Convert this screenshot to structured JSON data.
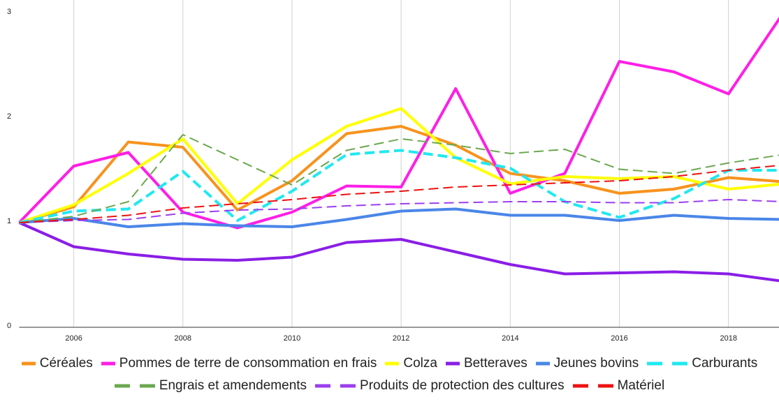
{
  "chart_data": {
    "type": "line",
    "x": [
      2005,
      2006,
      2007,
      2008,
      2009,
      2010,
      2011,
      2012,
      2013,
      2014,
      2015,
      2016,
      2017,
      2018,
      2019
    ],
    "xlim": [
      2005,
      2018.9
    ],
    "xticks": [
      2006,
      2008,
      2010,
      2012,
      2014,
      2016,
      2018
    ],
    "ylim": [
      0,
      3
    ],
    "yticks": [
      0,
      1,
      2,
      3
    ],
    "grid": true,
    "legend": "bottom",
    "series": [
      {
        "name": "Céréales",
        "color": "#f7931e",
        "dash": false,
        "values": [
          1.0,
          1.15,
          1.77,
          1.72,
          1.12,
          1.4,
          1.85,
          1.92,
          1.74,
          1.47,
          1.4,
          1.28,
          1.32,
          1.43,
          1.39
        ]
      },
      {
        "name": "Pommes de terre de consommation en frais",
        "color": "#ff1ee6",
        "dash": false,
        "values": [
          1.0,
          1.54,
          1.67,
          1.1,
          0.95,
          1.1,
          1.35,
          1.34,
          2.28,
          1.28,
          1.47,
          2.54,
          2.44,
          2.23,
          3.0
        ]
      },
      {
        "name": "Colza",
        "color": "#ffff00",
        "dash": false,
        "values": [
          1.0,
          1.17,
          1.47,
          1.8,
          1.18,
          1.6,
          1.92,
          2.09,
          1.62,
          1.37,
          1.44,
          1.42,
          1.44,
          1.32,
          1.37
        ]
      },
      {
        "name": "Betteraves",
        "color": "#8a1ee6",
        "dash": false,
        "values": [
          1.0,
          0.77,
          0.7,
          0.65,
          0.64,
          0.67,
          0.81,
          0.84,
          0.72,
          0.6,
          0.51,
          0.52,
          0.53,
          0.51,
          0.44
        ]
      },
      {
        "name": "Jeunes bovins",
        "color": "#4a86e8",
        "dash": false,
        "values": [
          1.0,
          1.04,
          0.96,
          0.99,
          0.97,
          0.96,
          1.03,
          1.11,
          1.13,
          1.07,
          1.07,
          1.02,
          1.07,
          1.04,
          1.03
        ]
      },
      {
        "name": "Carburants",
        "color": "#22e8f0",
        "dash": true,
        "values": [
          1.0,
          1.11,
          1.13,
          1.49,
          1.02,
          1.3,
          1.65,
          1.69,
          1.62,
          1.52,
          1.2,
          1.05,
          1.23,
          1.5,
          1.5
        ]
      },
      {
        "name": "Engrais et amendements",
        "color": "#6aa84f",
        "dash": true,
        "values": [
          1.0,
          1.06,
          1.2,
          1.84,
          1.6,
          1.36,
          1.69,
          1.8,
          1.74,
          1.66,
          1.7,
          1.51,
          1.47,
          1.57,
          1.65
        ]
      },
      {
        "name": "Produits de protection des cultures",
        "color": "#9b3ef0",
        "dash": true,
        "values": [
          1.0,
          1.02,
          1.03,
          1.09,
          1.12,
          1.13,
          1.16,
          1.18,
          1.19,
          1.2,
          1.2,
          1.19,
          1.19,
          1.22,
          1.2
        ]
      },
      {
        "name": "Matériel",
        "color": "#ee1111",
        "dash": true,
        "values": [
          1.0,
          1.03,
          1.07,
          1.14,
          1.18,
          1.22,
          1.27,
          1.3,
          1.34,
          1.36,
          1.38,
          1.4,
          1.44,
          1.5,
          1.55
        ]
      }
    ]
  }
}
